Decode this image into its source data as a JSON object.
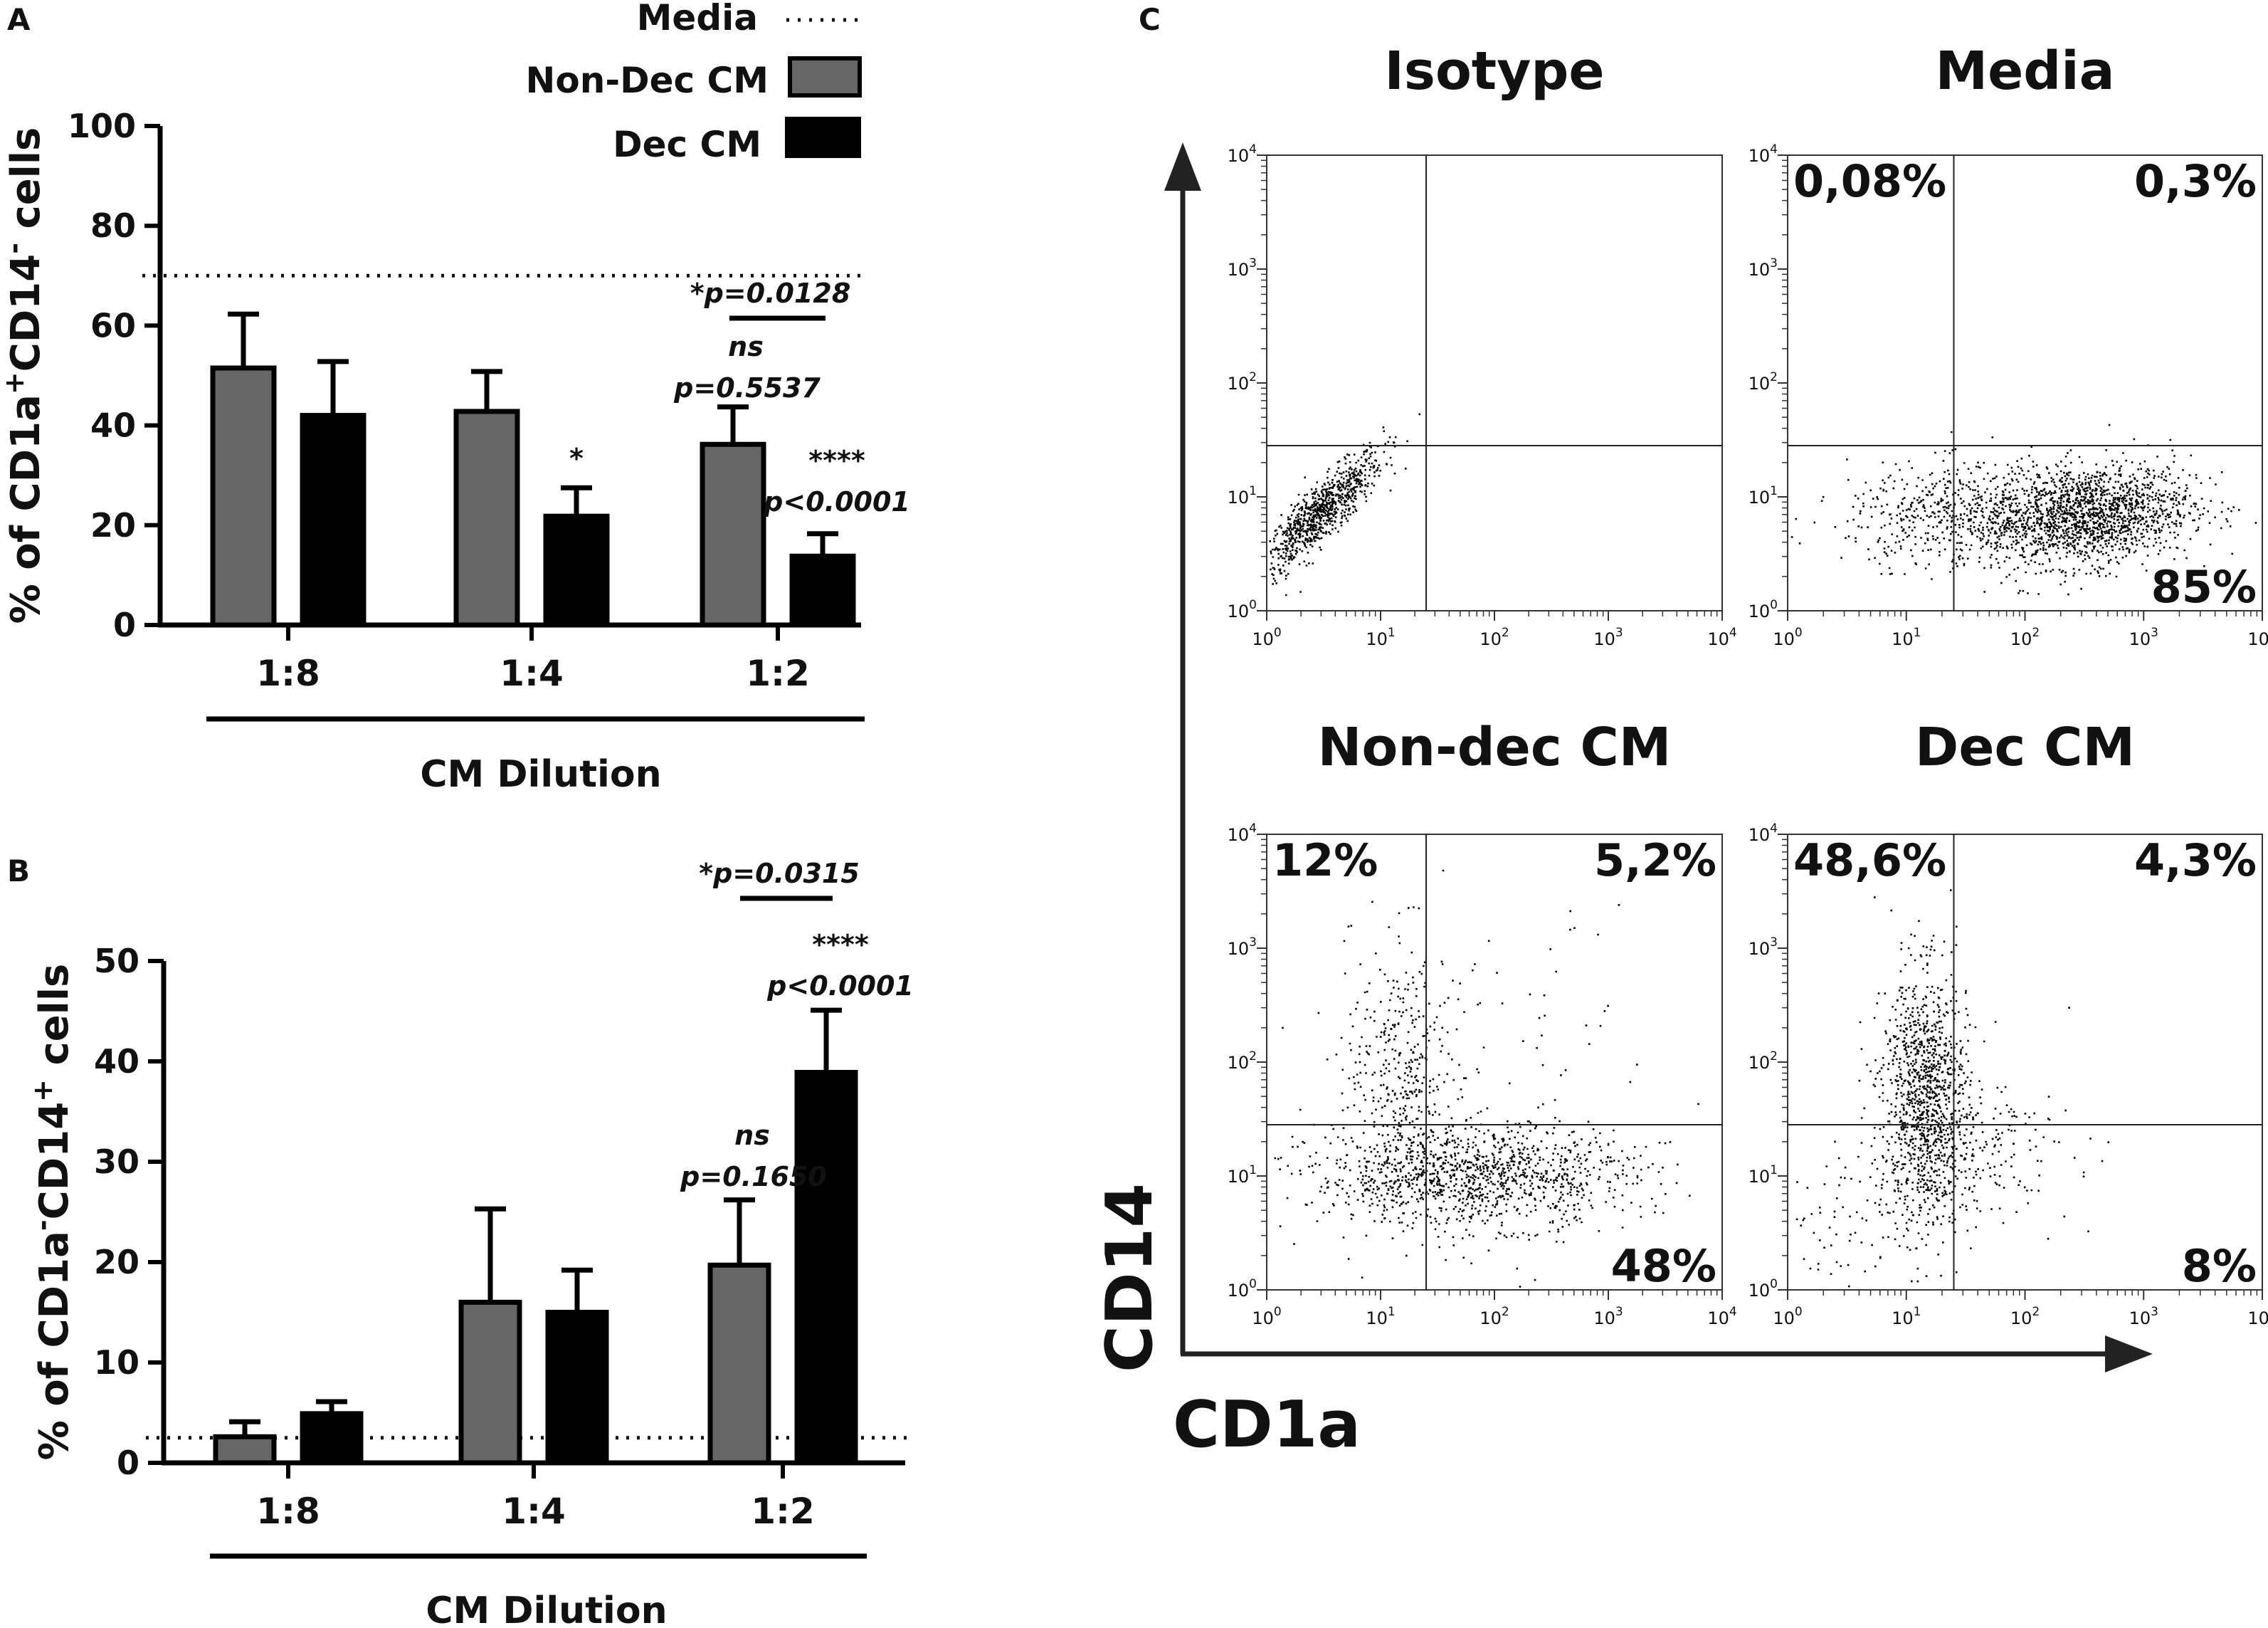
{
  "panels": {
    "a": "A",
    "b": "B",
    "c": "C"
  },
  "colors": {
    "non_dec": "#666666",
    "dec": "#000000",
    "ink": "#111111"
  },
  "legend": {
    "media": "Media",
    "non_dec": "Non-Dec CM",
    "dec": "Dec CM"
  },
  "chart_data": [
    {
      "id": "A",
      "type": "bar",
      "ylabel_parts": [
        "% of CD1a",
        "+",
        "CD14",
        "-",
        " cells"
      ],
      "xlabel": "CM Dilution",
      "categories": [
        "1:8",
        "1:4",
        "1:2"
      ],
      "ylim": [
        0,
        100
      ],
      "yticks": [
        0,
        20,
        40,
        60,
        80,
        100
      ],
      "media_line": 70,
      "series": [
        {
          "name": "Non-Dec CM",
          "values": [
            51.5,
            42.8,
            36.2
          ],
          "errors": [
            10.8,
            8.0,
            7.5
          ]
        },
        {
          "name": "Dec CM",
          "values": [
            42.0,
            21.8,
            13.8
          ],
          "errors": [
            10.8,
            5.7,
            4.5
          ]
        }
      ],
      "annotations": {
        "star_14": "*",
        "ns": "ns",
        "p_ns": "p=0.5537",
        "stars": "****",
        "p_stars": "p<0.0001",
        "bracket": "*p=0.0128"
      }
    },
    {
      "id": "B",
      "type": "bar",
      "ylabel_parts": [
        "% of CD1a",
        "-",
        "CD14",
        "+",
        " cells"
      ],
      "xlabel": "CM Dilution",
      "categories": [
        "1:8",
        "1:4",
        "1:2"
      ],
      "ylim": [
        0,
        50
      ],
      "yticks": [
        0,
        10,
        20,
        30,
        40,
        50
      ],
      "media_line": 2.5,
      "series": [
        {
          "name": "Non-Dec CM",
          "values": [
            2.6,
            16.0,
            19.7
          ],
          "errors": [
            1.5,
            9.3,
            6.5
          ]
        },
        {
          "name": "Dec CM",
          "values": [
            4.9,
            15.0,
            38.9
          ],
          "errors": [
            1.2,
            4.2,
            6.2
          ]
        }
      ],
      "annotations": {
        "ns": "ns",
        "p_ns": "p=0.1650",
        "stars": "****",
        "p_stars": "p<0.0001",
        "bracket": "*p=0.0315"
      }
    },
    {
      "id": "C",
      "type": "scatter",
      "xlabel": "CD1a",
      "ylabel": "CD14",
      "axis_scale": "log",
      "axis_range_decades": [
        0,
        4
      ],
      "quadrant_gate": {
        "x": 1.4,
        "y": 1.45
      },
      "tick_base": "10",
      "tick_exponents": [
        "0",
        "1",
        "2",
        "3",
        "4"
      ],
      "plots": [
        {
          "title": "Isotype",
          "q_ul": "",
          "q_ur": "",
          "q_lr": ""
        },
        {
          "title": "Media",
          "q_ul": "0,08%",
          "q_ur": "0,3%",
          "q_lr": "85%"
        },
        {
          "title": "Non-dec CM",
          "q_ul": "12%",
          "q_ur": "5,2%",
          "q_lr": "48%"
        },
        {
          "title": "Dec CM",
          "q_ul": "48,6%",
          "q_ur": "4,3%",
          "q_lr": "8%"
        }
      ]
    }
  ]
}
